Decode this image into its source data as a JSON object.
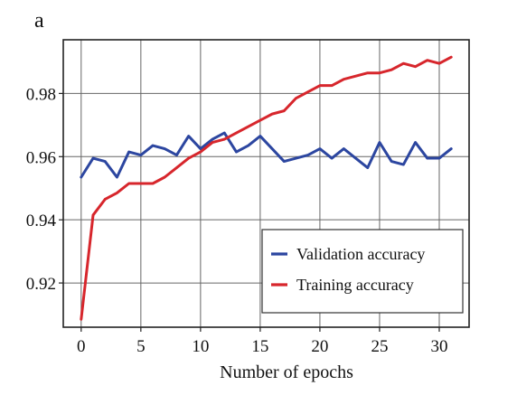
{
  "panel_label": "a",
  "chart_data": {
    "type": "line",
    "title": "",
    "xlabel": "Number of epochs",
    "ylabel": "",
    "xlim": [
      -1.5,
      32.5
    ],
    "ylim": [
      0.906,
      0.997
    ],
    "xticks": [
      0,
      5,
      10,
      15,
      20,
      25,
      30
    ],
    "yticks": [
      0.92,
      0.94,
      0.96,
      0.98
    ],
    "ytick_labels": [
      "0.92",
      "0.94",
      "0.96",
      "0.98"
    ],
    "grid": true,
    "legend_position": "lower-right",
    "x": [
      0,
      1,
      2,
      3,
      4,
      5,
      6,
      7,
      8,
      9,
      10,
      11,
      12,
      13,
      14,
      15,
      16,
      17,
      18,
      19,
      20,
      21,
      22,
      23,
      24,
      25,
      26,
      27,
      28,
      29,
      30,
      31
    ],
    "series": [
      {
        "name": "Validation accuracy",
        "color": "#2c46a0",
        "values": [
          0.9535,
          0.9595,
          0.9585,
          0.9535,
          0.9615,
          0.9605,
          0.9635,
          0.9625,
          0.9605,
          0.9665,
          0.9625,
          0.9655,
          0.9675,
          0.9615,
          0.9635,
          0.9665,
          0.9625,
          0.9585,
          0.9595,
          0.9605,
          0.9625,
          0.9595,
          0.9625,
          0.9595,
          0.9565,
          0.9645,
          0.9585,
          0.9575,
          0.9645,
          0.9595,
          0.9595,
          0.9625
        ]
      },
      {
        "name": "Training accuracy",
        "color": "#d7262c",
        "values": [
          0.9085,
          0.9415,
          0.9465,
          0.9485,
          0.9515,
          0.9515,
          0.9515,
          0.9535,
          0.9565,
          0.9595,
          0.9615,
          0.9645,
          0.9655,
          0.9675,
          0.9695,
          0.9715,
          0.9735,
          0.9745,
          0.9785,
          0.9805,
          0.9825,
          0.9825,
          0.9845,
          0.9855,
          0.9865,
          0.9865,
          0.9875,
          0.9895,
          0.9885,
          0.9905,
          0.9895,
          0.9915
        ]
      }
    ]
  }
}
